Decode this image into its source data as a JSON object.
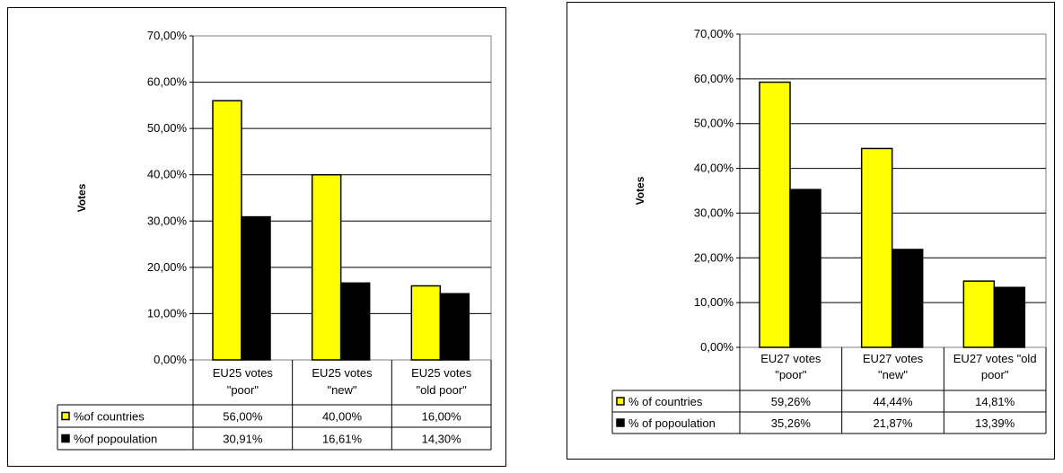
{
  "chart_data": [
    {
      "type": "bar",
      "title": "",
      "ylabel": "Votes",
      "ylim": [
        0,
        70
      ],
      "y_ticks": [
        "0,00%",
        "10,00%",
        "20,00%",
        "30,00%",
        "40,00%",
        "50,00%",
        "60,00%",
        "70,00%"
      ],
      "categories": [
        [
          "EU25 votes",
          "\"poor\""
        ],
        [
          "EU25 votes",
          "\"new\""
        ],
        [
          "EU25 votes",
          "\"old poor\""
        ]
      ],
      "series": [
        {
          "name": "%of countries",
          "color": "#ffff00",
          "values": [
            56.0,
            40.0,
            16.0
          ],
          "labels": [
            "56,00%",
            "40,00%",
            "16,00%"
          ]
        },
        {
          "name": "%of popoulation",
          "color": "#000000",
          "values": [
            30.91,
            16.61,
            14.3
          ],
          "labels": [
            "30,91%",
            "16,61%",
            "14,30%"
          ]
        }
      ],
      "grid": true,
      "legend": "data-table-below"
    },
    {
      "type": "bar",
      "title": "",
      "ylabel": "Votes",
      "ylim": [
        0,
        70
      ],
      "y_ticks": [
        "0,00%",
        "10,00%",
        "20,00%",
        "30,00%",
        "40,00%",
        "50,00%",
        "60,00%",
        "70,00%"
      ],
      "categories": [
        [
          "EU27 votes",
          "\"poor\""
        ],
        [
          "EU27 votes",
          "\"new\""
        ],
        [
          "EU27 votes \"old",
          "poor\""
        ]
      ],
      "series": [
        {
          "name": "% of countries",
          "color": "#ffff00",
          "values": [
            59.26,
            44.44,
            14.81
          ],
          "labels": [
            "59,26%",
            "44,44%",
            "14,81%"
          ]
        },
        {
          "name": "% of popoulation",
          "color": "#000000",
          "values": [
            35.26,
            21.87,
            13.39
          ],
          "labels": [
            "35,26%",
            "21,87%",
            "13,39%"
          ]
        }
      ],
      "grid": true,
      "legend": "data-table-below"
    }
  ]
}
